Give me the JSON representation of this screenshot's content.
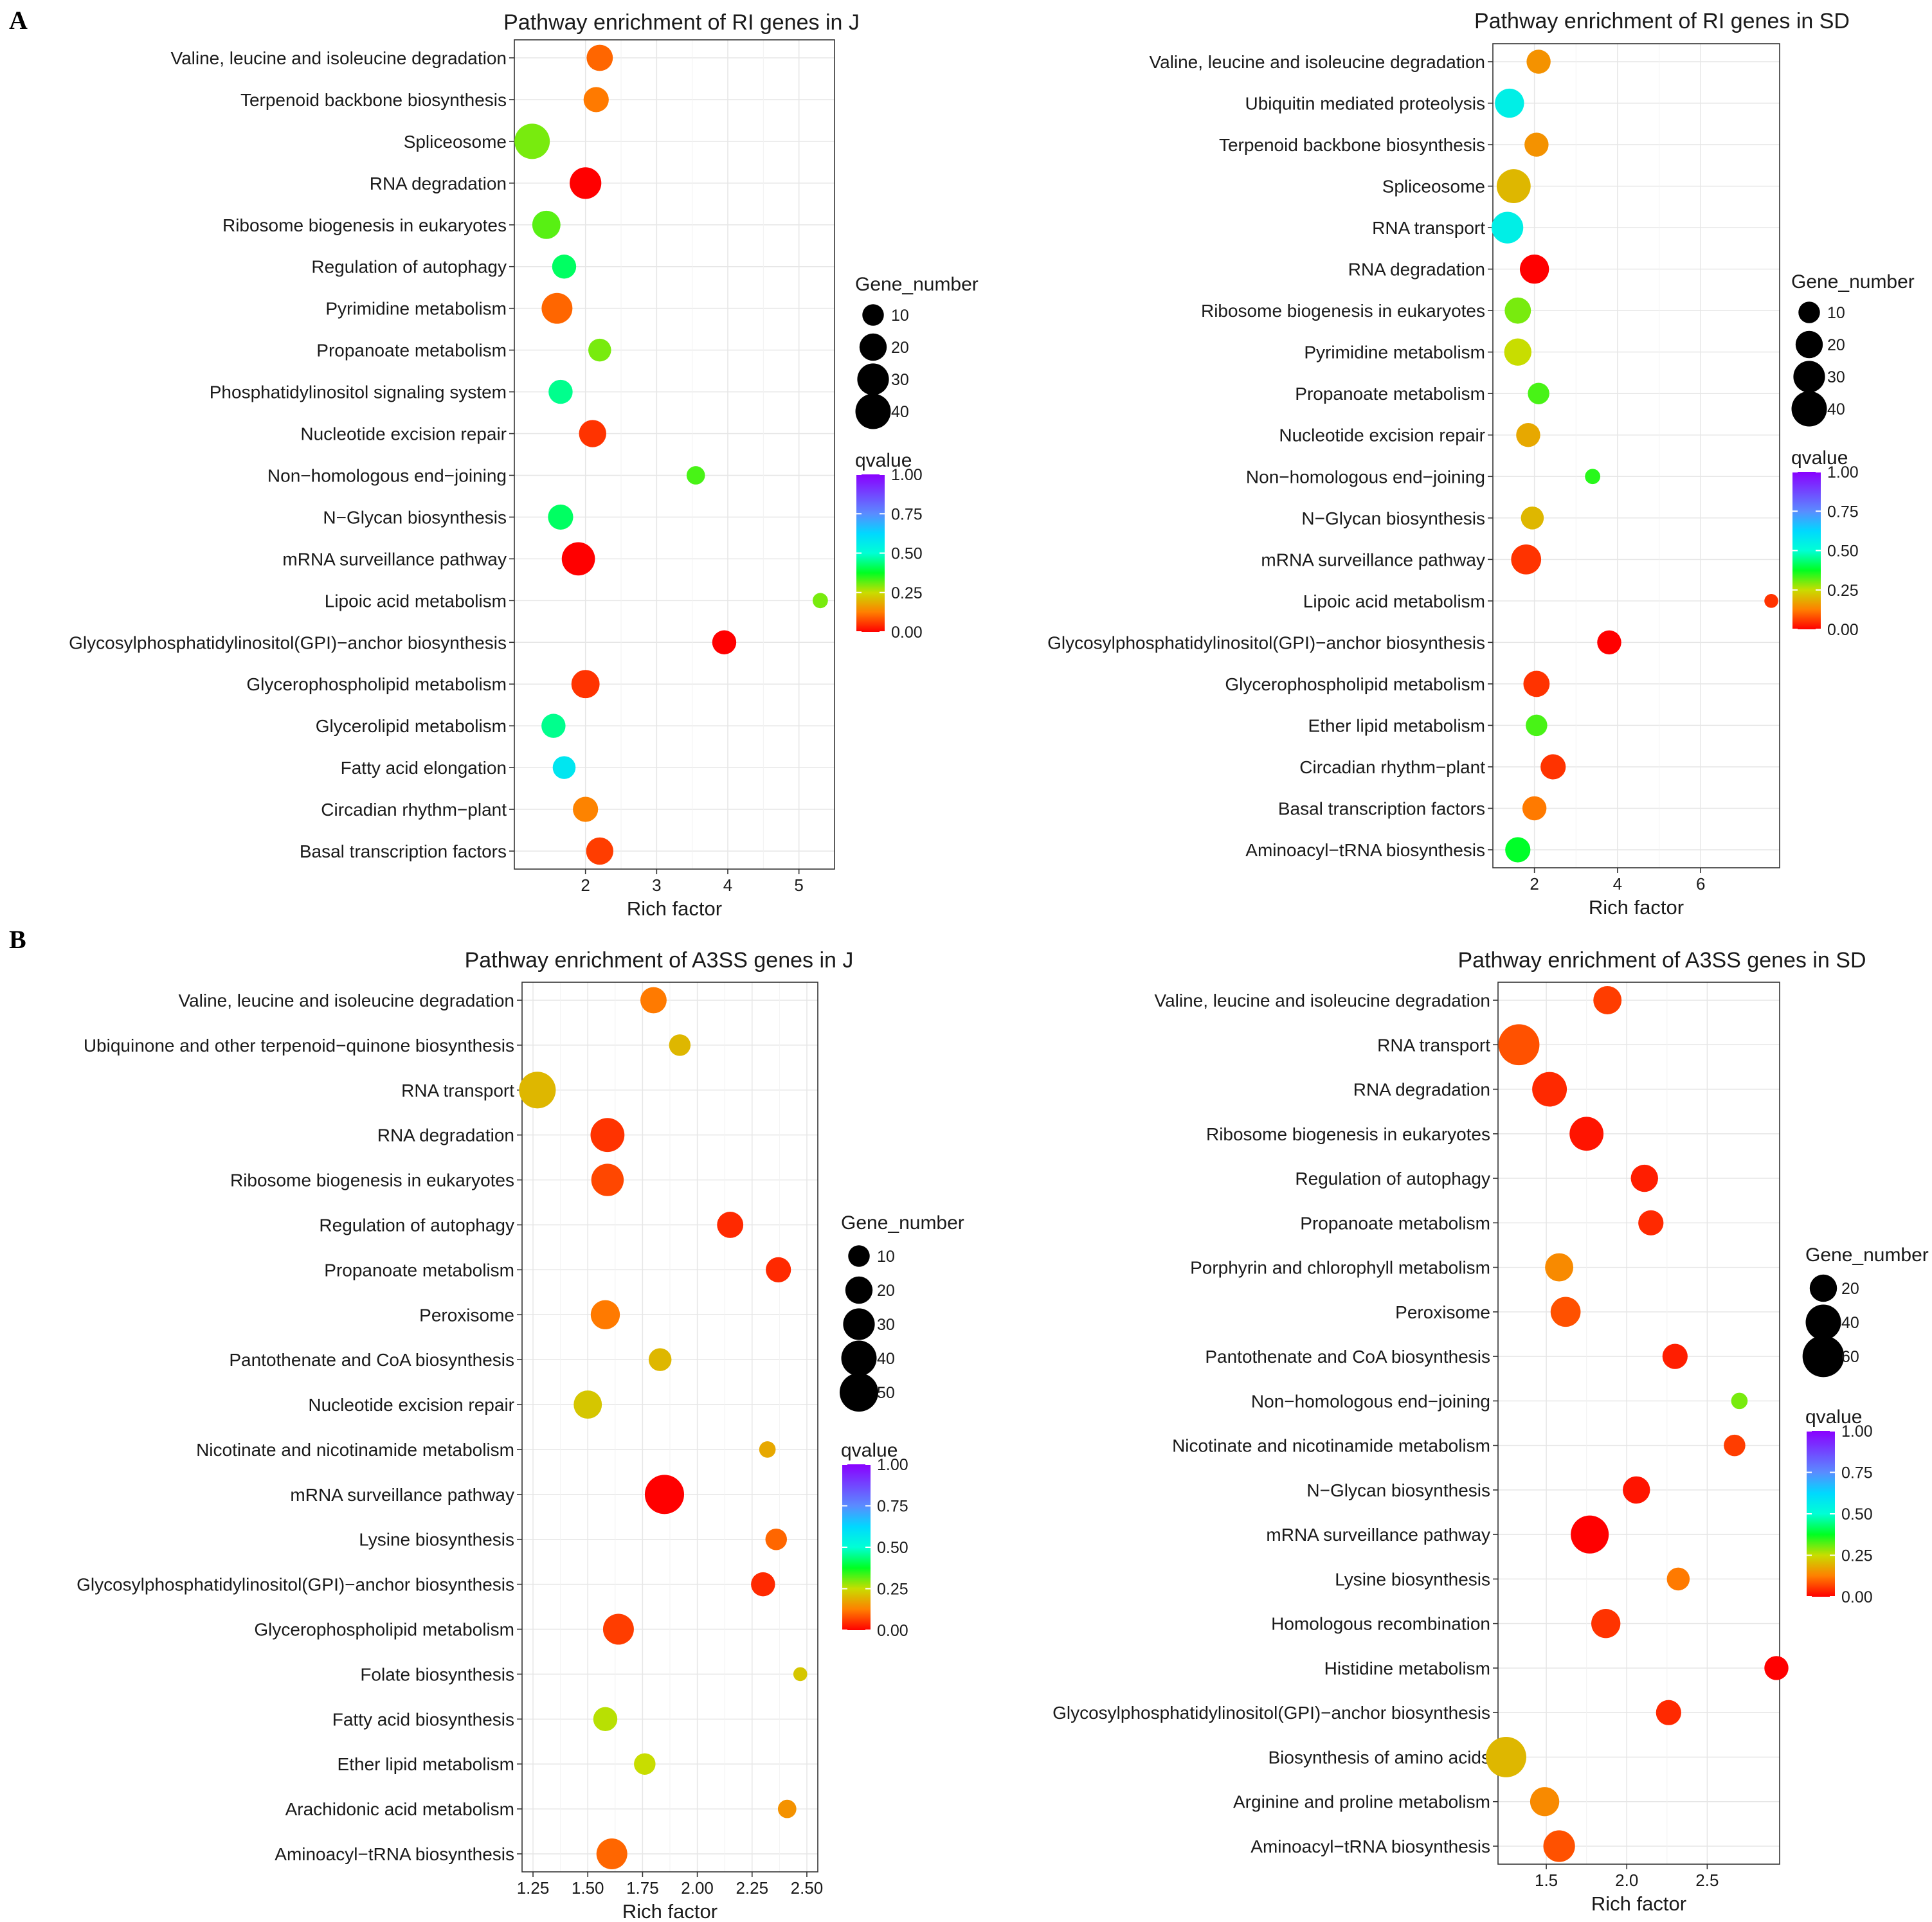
{
  "panel_labels": [
    "A",
    "B"
  ],
  "legend_titles": {
    "size": "Gene_number",
    "color": "qvalue"
  },
  "chart_data": [
    {
      "type": "scatter",
      "panel": "A",
      "title": "Pathway enrichment of RI genes in J",
      "xlabel": "Rich factor",
      "ylabel": "",
      "xlim": [
        1.0,
        5.5
      ],
      "xticks": [
        2,
        3,
        4,
        5
      ],
      "x_tick_labels": [
        "2",
        "3",
        "4",
        "5"
      ],
      "size_legend": [
        10,
        20,
        30,
        40
      ],
      "color_legend": {
        "ticks": [
          1.0,
          0.75,
          0.5,
          0.25,
          0.0
        ],
        "labels": [
          "1.00",
          "0.75",
          "0.50",
          "0.25",
          "0.00"
        ]
      },
      "categories": [
        "Valine, leucine and isoleucine degradation",
        "Terpenoid backbone biosynthesis",
        "Spliceosome",
        "RNA degradation",
        "Ribosome biogenesis in eukaryotes",
        "Regulation of autophagy",
        "Pyrimidine metabolism",
        "Propanoate metabolism",
        "Phosphatidylinositol signaling system",
        "Nucleotide excision repair",
        "Non−homologous end−joining",
        "N−Glycan biosynthesis",
        "mRNA surveillance pathway",
        "Lipoic acid metabolism",
        "Glycosylphosphatidylinositol(GPI)−anchor biosynthesis",
        "Glycerophospholipid metabolism",
        "Glycerolipid metabolism",
        "Fatty acid elongation",
        "Circadian rhythm−plant",
        "Basal transcription factors"
      ],
      "x": [
        2.2,
        2.15,
        1.25,
        2.0,
        1.45,
        1.7,
        1.6,
        2.2,
        1.65,
        2.1,
        3.55,
        1.65,
        1.9,
        5.3,
        3.95,
        2.0,
        1.55,
        1.7,
        2.0,
        2.2
      ],
      "gene_number": [
        18,
        16,
        40,
        30,
        22,
        14,
        28,
        12,
        14,
        20,
        6,
        16,
        34,
        3,
        14,
        22,
        14,
        12,
        16,
        20
      ],
      "qvalue": [
        0.1,
        0.12,
        0.3,
        0.0,
        0.32,
        0.42,
        0.1,
        0.3,
        0.45,
        0.05,
        0.33,
        0.42,
        0.0,
        0.3,
        0.0,
        0.05,
        0.45,
        0.58,
        0.13,
        0.06
      ]
    },
    {
      "type": "scatter",
      "panel": "A",
      "title": "Pathway enrichment of RI genes in SD",
      "xlabel": "Rich factor",
      "ylabel": "",
      "xlim": [
        1.0,
        7.9
      ],
      "xticks": [
        2,
        4,
        6
      ],
      "x_tick_labels": [
        "2",
        "4",
        "6"
      ],
      "size_legend": [
        10,
        20,
        30,
        40
      ],
      "color_legend": {
        "ticks": [
          1.0,
          0.75,
          0.5,
          0.25,
          0.0
        ],
        "labels": [
          "1.00",
          "0.75",
          "0.50",
          "0.25",
          "0.00"
        ]
      },
      "categories": [
        "Valine, leucine and isoleucine degradation",
        "Ubiquitin mediated proteolysis",
        "Terpenoid backbone biosynthesis",
        "Spliceosome",
        "RNA transport",
        "RNA degradation",
        "Ribosome biogenesis in eukaryotes",
        "Pyrimidine metabolism",
        "Propanoate metabolism",
        "Nucleotide excision repair",
        "Non−homologous end−joining",
        "N−Glycan biosynthesis",
        "mRNA surveillance pathway",
        "Lipoic acid metabolism",
        "Glycosylphosphatidylinositol(GPI)−anchor biosynthesis",
        "Glycerophospholipid metabolism",
        "Ether lipid metabolism",
        "Circadian rhythm−plant",
        "Basal transcription factors",
        "Aminoacyl−tRNA biosynthesis"
      ],
      "x": [
        2.1,
        1.4,
        2.05,
        1.5,
        1.35,
        2.0,
        1.6,
        1.6,
        2.1,
        1.85,
        3.4,
        1.95,
        1.8,
        7.7,
        3.8,
        2.05,
        2.05,
        2.45,
        2.0,
        1.6
      ],
      "gene_number": [
        14,
        24,
        14,
        36,
        30,
        24,
        18,
        20,
        10,
        14,
        3,
        12,
        26,
        2,
        14,
        18,
        10,
        16,
        14,
        16
      ],
      "qvalue": [
        0.15,
        0.55,
        0.15,
        0.2,
        0.55,
        0.0,
        0.3,
        0.25,
        0.33,
        0.18,
        0.35,
        0.2,
        0.05,
        0.05,
        0.0,
        0.05,
        0.33,
        0.05,
        0.12,
        0.38
      ]
    },
    {
      "type": "scatter",
      "panel": "B",
      "title": "Pathway enrichment of A3SS genes in J",
      "xlabel": "Rich factor",
      "ylabel": "",
      "xlim": [
        1.2,
        2.55
      ],
      "xticks": [
        1.25,
        1.5,
        1.75,
        2.0,
        2.25,
        2.5
      ],
      "x_tick_labels": [
        "1.25",
        "1.50",
        "1.75",
        "2.00",
        "2.25",
        "2.50"
      ],
      "size_legend": [
        10,
        20,
        30,
        40,
        50
      ],
      "color_legend": {
        "ticks": [
          1.0,
          0.75,
          0.5,
          0.25,
          0.0
        ],
        "labels": [
          "1.00",
          "0.75",
          "0.50",
          "0.25",
          "0.00"
        ]
      },
      "categories": [
        "Valine, leucine and isoleucine degradation",
        "Ubiquinone and other terpenoid−quinone biosynthesis",
        "RNA transport",
        "RNA degradation",
        "Ribosome biogenesis in eukaryotes",
        "Regulation of autophagy",
        "Propanoate metabolism",
        "Peroxisome",
        "Pantothenate and CoA biosynthesis",
        "Nucleotide excision repair",
        "Nicotinate and nicotinamide metabolism",
        "mRNA surveillance pathway",
        "Lysine biosynthesis",
        "Glycosylphosphatidylinositol(GPI)−anchor biosynthesis",
        "Glycerophospholipid metabolism",
        "Folate biosynthesis",
        "Fatty acid biosynthesis",
        "Ether lipid metabolism",
        "Arachidonic acid metabolism",
        "Aminoacyl−tRNA biosynthesis"
      ],
      "x": [
        1.8,
        1.92,
        1.27,
        1.59,
        1.59,
        2.15,
        2.37,
        1.58,
        1.83,
        1.5,
        2.32,
        1.85,
        2.36,
        2.3,
        1.64,
        2.47,
        1.58,
        1.76,
        2.41,
        1.61
      ],
      "gene_number": [
        18,
        10,
        44,
        36,
        32,
        18,
        16,
        24,
        12,
        22,
        4,
        52,
        10,
        14,
        28,
        2,
        14,
        10,
        6,
        28
      ],
      "qvalue": [
        0.12,
        0.2,
        0.2,
        0.05,
        0.07,
        0.04,
        0.04,
        0.12,
        0.2,
        0.22,
        0.18,
        0.0,
        0.1,
        0.04,
        0.06,
        0.22,
        0.26,
        0.25,
        0.15,
        0.1
      ]
    },
    {
      "type": "scatter",
      "panel": "B",
      "title": "Pathway enrichment of A3SS genes in SD",
      "xlabel": "Rich factor",
      "ylabel": "",
      "xlim": [
        1.2,
        2.95
      ],
      "xticks": [
        1.5,
        2.0,
        2.5
      ],
      "x_tick_labels": [
        "1.5",
        "2.0",
        "2.5"
      ],
      "size_legend": [
        20,
        40,
        60
      ],
      "color_legend": {
        "ticks": [
          1.0,
          0.75,
          0.5,
          0.25,
          0.0
        ],
        "labels": [
          "1.00",
          "0.75",
          "0.50",
          "0.25",
          "0.00"
        ]
      },
      "categories": [
        "Valine, leucine and isoleucine degradation",
        "RNA transport",
        "RNA degradation",
        "Ribosome biogenesis in eukaryotes",
        "Regulation of autophagy",
        "Propanoate metabolism",
        "Porphyrin and chlorophyll metabolism",
        "Peroxisome",
        "Pantothenate and CoA biosynthesis",
        "Non−homologous end−joining",
        "Nicotinate and nicotinamide metabolism",
        "N−Glycan biosynthesis",
        "mRNA surveillance pathway",
        "Lysine biosynthesis",
        "Homologous recombination",
        "Histidine metabolism",
        "Glycosylphosphatidylinositol(GPI)−anchor biosynthesis",
        "Biosynthesis of amino acids",
        "Arginine and proline metabolism",
        "Aminoacyl−tRNA biosynthesis"
      ],
      "x": [
        1.88,
        1.33,
        1.52,
        1.75,
        2.11,
        2.15,
        1.58,
        1.62,
        2.3,
        2.7,
        2.67,
        2.06,
        1.77,
        2.32,
        1.87,
        2.93,
        2.26,
        1.25,
        1.49,
        1.58
      ],
      "gene_number": [
        22,
        58,
        38,
        36,
        20,
        16,
        22,
        26,
        16,
        4,
        10,
        20,
        48,
        12,
        24,
        14,
        16,
        56,
        24,
        30
      ],
      "qvalue": [
        0.06,
        0.08,
        0.04,
        0.02,
        0.03,
        0.04,
        0.14,
        0.08,
        0.03,
        0.3,
        0.06,
        0.02,
        0.0,
        0.12,
        0.05,
        0.0,
        0.04,
        0.2,
        0.14,
        0.08
      ]
    }
  ]
}
